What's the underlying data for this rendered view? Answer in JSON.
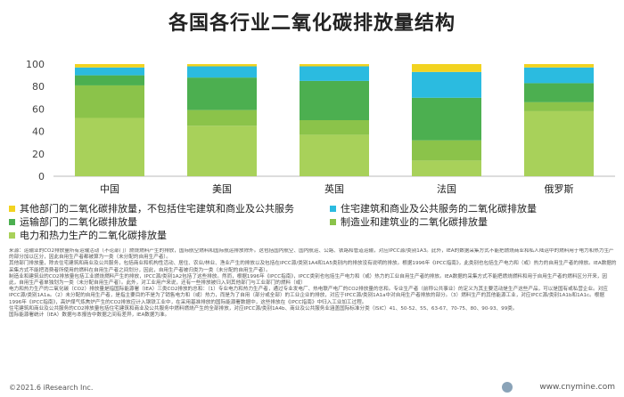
{
  "title": "各国各行业二氧化碳排放量结构",
  "chart_data": {
    "type": "bar",
    "stacked": true,
    "categories": [
      "中国",
      "美国",
      "英国",
      "法国",
      "俄罗斯"
    ],
    "ylim": [
      0,
      100
    ],
    "yticks": [
      0,
      20,
      40,
      60,
      80,
      100
    ],
    "grid": false,
    "legend_position": "bottom",
    "series": [
      {
        "name": "电力和热力生产的二氧化碳排放量",
        "color": "#a8d15a",
        "values": [
          52,
          45,
          37,
          14,
          58
        ]
      },
      {
        "name": "制造业和建筑业的二氧化碳排放量",
        "color": "#8bc34a",
        "values": [
          29,
          14,
          13,
          18,
          8
        ]
      },
      {
        "name": "运输部门的二氧化碳排放量",
        "color": "#4caf50",
        "values": [
          9,
          29,
          35,
          38,
          17
        ]
      },
      {
        "name": "住宅建筑和商业及公共服务的二氧化碳排放量",
        "color": "#2bbbe0",
        "values": [
          7,
          10,
          13,
          23,
          14
        ]
      },
      {
        "name": "其他部门的二氧化碳排放量，不包括住宅建筑和商业及公共服务",
        "color": "#f2d320",
        "values": [
          3,
          2,
          2,
          7,
          3
        ]
      }
    ]
  },
  "legend_order": [
    4,
    3,
    2,
    1,
    0
  ],
  "source_paragraphs": [
    "来源：运输业的CO2排放量所有运输活动（不论部门）燃烧燃料产生的排放，国际航空燃料和国际航运排放除外。这包括国内航空、国内航运、公路、铁路和管道运输，对应IPCC源/类别1A3。此外，IEA的数据采集方式不能把燃烧商业和私人陆运中的燃料用于电力和热力生产的部分加以区分，因此自用生产者都被算为一类（未分配的自用生产者）。",
    "其他部门排放量，除去住宅建筑和商业及公共服务，包括商业和机构性活动、居住、农业/林业、渔业产生的排放以及包括在IPCC源/类别1A4和1A5类别内的排放没有说明的排放。根据1996年《IPCC指南》，此类别也包括生产电力和（或）热力的自用生产者的排放。IEA数据的采集方式不能把消费者所使用的燃料在自用生产者之间划分，因此，自用生产者被归类为一类（未分配的自用生产者）。",
    "制造业和建筑业的CO2排放量包括工业燃烧燃料产生的排放，IPCC源/类别1A2包括了这些排放。然而，根据1996年《IPCC指南》，IPCC类别也包括生产电力和（或）热力的工业自用生产者的排放。IEA数据的采集方式不能把燃烧燃料和用于自用生产者的燃料区分开来，因此，自用生产者单独划为一类（未分配自用生产者）。此外，对工业用户来说，还有一些排放被归入到其他部门与工业部门的燃料（或）",
    "电力和热力生产的二氧化碳（CO2）排放量是指国际能源署（IEA）三类CO2排放的总和：（1）专业电力和热力生产者，通过专业发电厂、热电联产电厂的CO2排放量的总和。专业生产者（前称公共事业）的定义为其主要活动是生产这些产品，可以是国有或私营企业。对应IPCC源/类别1A1a。（2）未分配的自用生产者，是指主要目的不是为了销售电力和（或）热力，而是为了自用（部分或全部）的工业企业的排放，对应于IPCC源/类别1A1a中对自用生产者排放的部分。（3）燃料生产的其他能源工业，对应IPCC源/类别1A1b和1A1c。根据1996年《IPCC指南》，高炉煤气炼焦炉产生的CO2排放应计入钢铁工业中，在采用基准排放的国际能源署数据中，这些排放在《IPCC指南》中归入工业加工过程。",
    "住宅建筑和商业及公共服务的CO2排放量包括住宅建筑和商业及公共服务中燃料燃烧产生的全部排放，对应IPCC源/类别1A4b、商业及公共服务业涵盖国际标准分类（ISIC）41、50-52、55、63-67、70-75、80、90-93、99类。",
    "国际能源署统计（IEA）数据与本报告中数据之间有差异，IEA数据为准。"
  ],
  "footer": {
    "copyright": "©2021.6 iResearch Inc.",
    "site": "www.cnymine.com"
  }
}
